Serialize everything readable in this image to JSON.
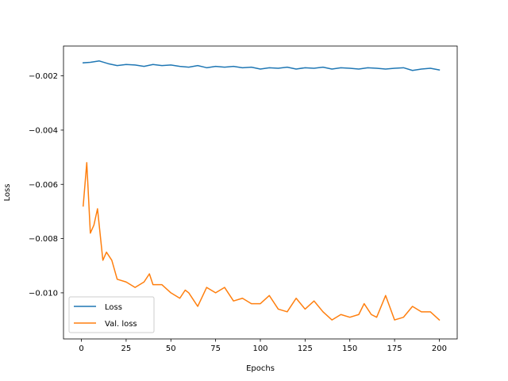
{
  "chart_data": {
    "type": "line",
    "xlabel": "Epochs",
    "ylabel": "Loss",
    "xlim": [
      -10,
      210
    ],
    "ylim": [
      -0.0117,
      -0.0009
    ],
    "xticks": [
      0,
      25,
      50,
      75,
      100,
      125,
      150,
      175,
      200
    ],
    "xtick_labels": [
      "0",
      "25",
      "50",
      "75",
      "100",
      "125",
      "150",
      "175",
      "200"
    ],
    "yticks": [
      -0.01,
      -0.008,
      -0.006,
      -0.004,
      -0.002
    ],
    "ytick_labels": [
      "−0.010",
      "−0.008",
      "−0.006",
      "−0.004",
      "−0.002"
    ],
    "grid": false,
    "legend": "lower-left",
    "series": [
      {
        "name": "Loss",
        "color": "#1f77b4",
        "x": [
          1,
          5,
          10,
          15,
          20,
          25,
          30,
          35,
          40,
          45,
          50,
          55,
          60,
          65,
          70,
          75,
          80,
          85,
          90,
          95,
          100,
          105,
          110,
          115,
          120,
          125,
          130,
          135,
          140,
          145,
          150,
          155,
          160,
          165,
          170,
          175,
          180,
          185,
          190,
          195,
          200
        ],
        "values": [
          -0.00152,
          -0.0015,
          -0.00145,
          -0.00155,
          -0.00162,
          -0.00158,
          -0.0016,
          -0.00165,
          -0.00158,
          -0.00162,
          -0.0016,
          -0.00165,
          -0.00168,
          -0.00162,
          -0.0017,
          -0.00165,
          -0.00168,
          -0.00165,
          -0.0017,
          -0.00168,
          -0.00175,
          -0.0017,
          -0.00172,
          -0.00168,
          -0.00175,
          -0.0017,
          -0.00172,
          -0.00168,
          -0.00175,
          -0.0017,
          -0.00172,
          -0.00175,
          -0.0017,
          -0.00172,
          -0.00175,
          -0.00172,
          -0.0017,
          -0.0018,
          -0.00175,
          -0.00172,
          -0.00178
        ]
      },
      {
        "name": "Val. loss",
        "color": "#ff7f0e",
        "x": [
          1,
          3,
          5,
          7,
          9,
          12,
          14,
          17,
          20,
          25,
          30,
          35,
          38,
          40,
          45,
          50,
          55,
          58,
          60,
          65,
          70,
          75,
          80,
          85,
          90,
          95,
          100,
          105,
          110,
          115,
          120,
          125,
          130,
          135,
          140,
          145,
          150,
          155,
          158,
          162,
          165,
          170,
          175,
          180,
          185,
          190,
          195,
          200
        ],
        "values": [
          -0.0068,
          -0.0052,
          -0.0078,
          -0.0075,
          -0.0069,
          -0.0088,
          -0.0085,
          -0.0088,
          -0.0095,
          -0.0096,
          -0.0098,
          -0.0096,
          -0.0093,
          -0.0097,
          -0.0097,
          -0.01,
          -0.0102,
          -0.0099,
          -0.01,
          -0.0105,
          -0.0098,
          -0.01,
          -0.0098,
          -0.0103,
          -0.0102,
          -0.0104,
          -0.0104,
          -0.0101,
          -0.0106,
          -0.0107,
          -0.0102,
          -0.0106,
          -0.0103,
          -0.0107,
          -0.011,
          -0.0108,
          -0.0109,
          -0.0108,
          -0.0104,
          -0.0108,
          -0.0109,
          -0.0101,
          -0.011,
          -0.0109,
          -0.0105,
          -0.0107,
          -0.0107,
          -0.011
        ]
      }
    ]
  }
}
